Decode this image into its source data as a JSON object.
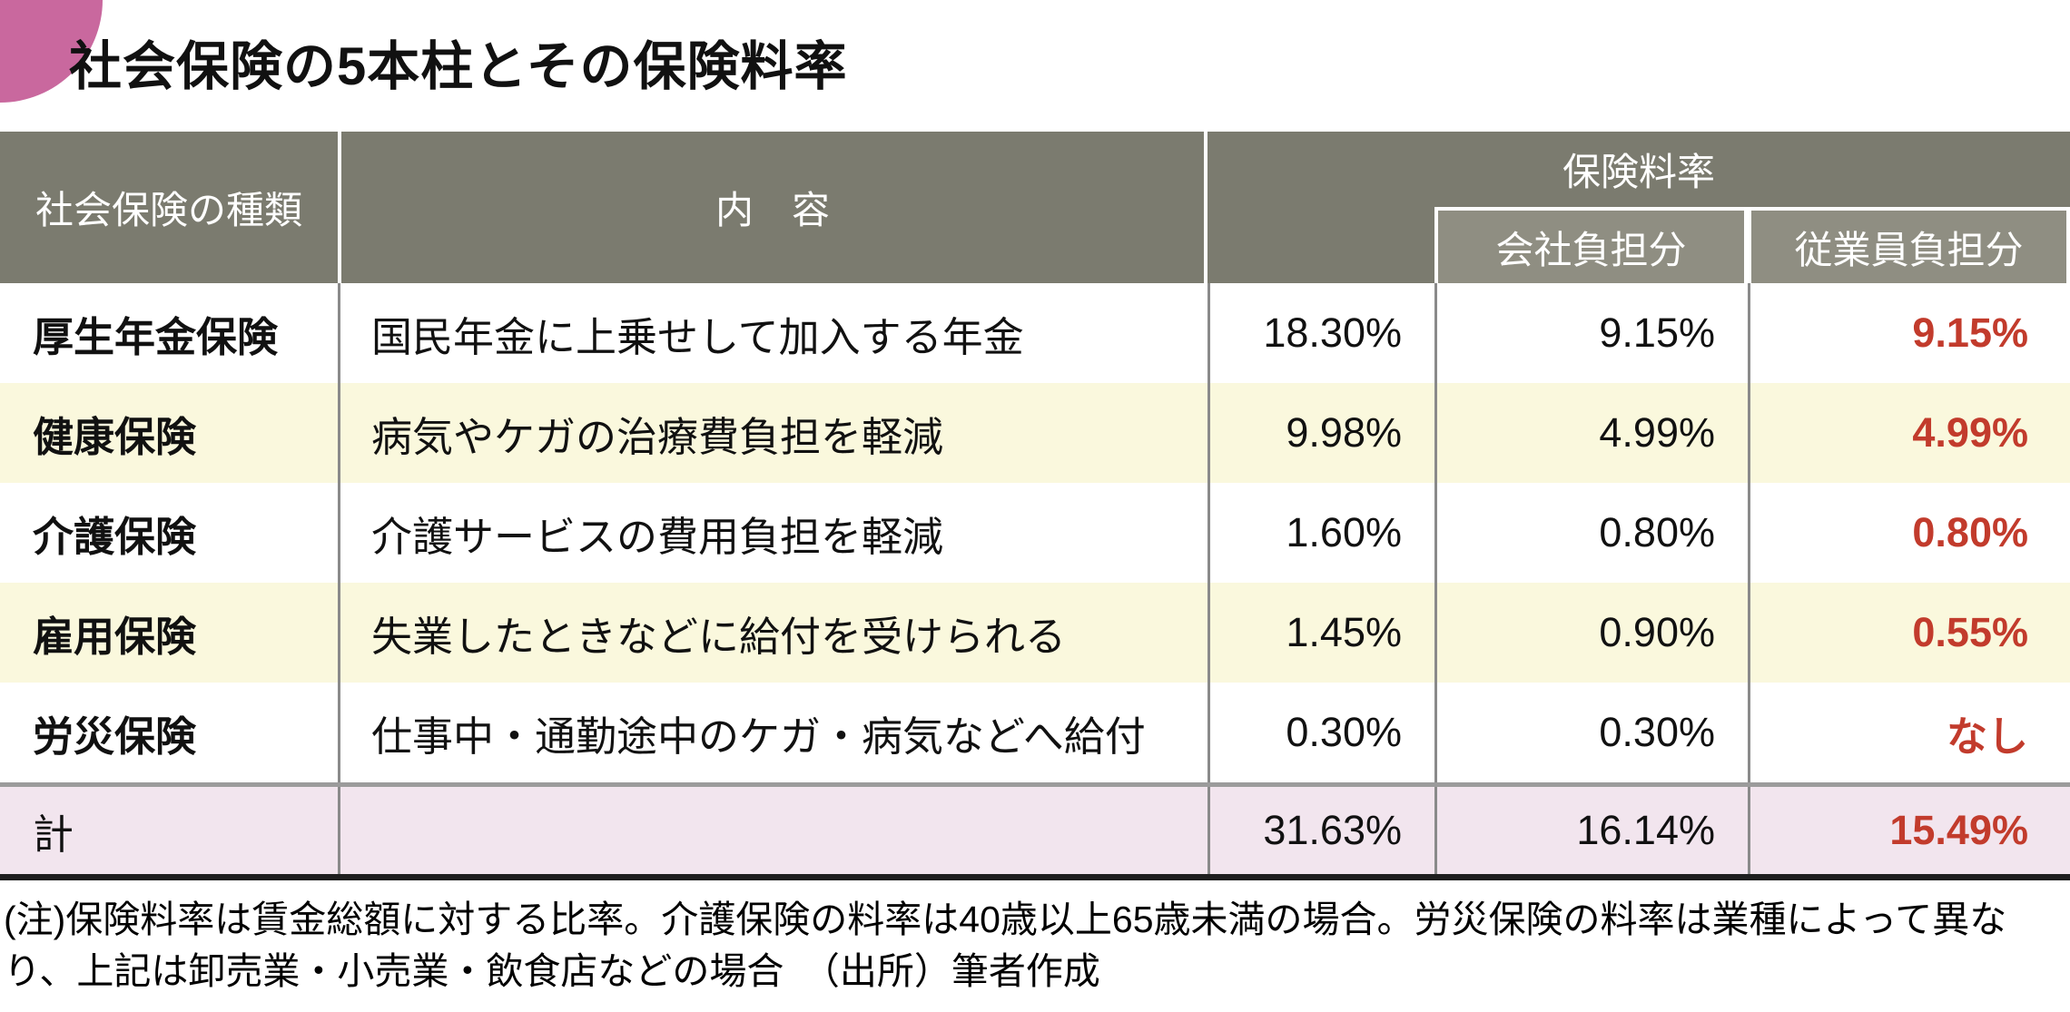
{
  "chart_data": {
    "type": "table",
    "title": "社会保険の5本柱とその保険料率",
    "header": {
      "type": "社会保険の種類",
      "content": "内　容",
      "rate_group": "保険料率",
      "company": "会社負担分",
      "employee": "従業員負担分"
    },
    "rows": [
      {
        "type": "厚生年金保険",
        "content": "国民年金に上乗せして加入する年金",
        "total": "18.30%",
        "company": "9.15%",
        "employee": "9.15%"
      },
      {
        "type": "健康保険",
        "content": "病気やケガの治療費負担を軽減",
        "total": "9.98%",
        "company": "4.99%",
        "employee": "4.99%"
      },
      {
        "type": "介護保険",
        "content": "介護サービスの費用負担を軽減",
        "total": "1.60%",
        "company": "0.80%",
        "employee": "0.80%"
      },
      {
        "type": "雇用保険",
        "content": "失業したときなどに給付を受けられる",
        "total": "1.45%",
        "company": "0.90%",
        "employee": "0.55%"
      },
      {
        "type": "労災保険",
        "content": "仕事中・通勤途中のケガ・病気などへ給付",
        "total": "0.30%",
        "company": "0.30%",
        "employee": "なし"
      }
    ],
    "total_row": {
      "type": "計",
      "content": "",
      "total": "31.63%",
      "company": "16.14%",
      "employee": "15.49%"
    },
    "note": "(注)保険料率は賃金総額に対する比率。介護保険の料率は40歳以上65歳未満の場合。労災保険の料率は業種によって異なり、上記は卸売業・小売業・飲食店などの場合　（出所）筆者作成",
    "colors": {
      "header_bg": "#7b7b6f",
      "subheader_bg": "#8f8e82",
      "alt_row_bg": "#faf8dd",
      "total_row_bg": "#f2e5ee",
      "employee_accent_red": "#c23b2c",
      "corner_pink": "#c9689e"
    },
    "layout_hints": {
      "grid": "off",
      "employee_column_emphasis": "red bold"
    }
  }
}
